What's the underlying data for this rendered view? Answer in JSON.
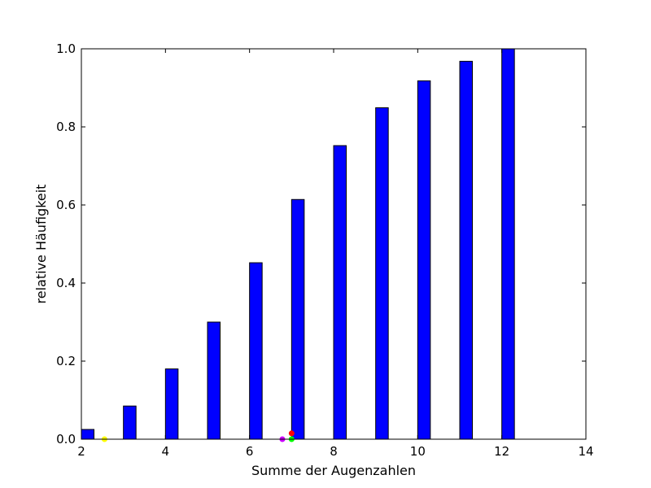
{
  "chart_data": {
    "type": "bar",
    "title": "",
    "xlabel": "Summe der Augenzahlen",
    "ylabel": "relative Häufigkeit",
    "xlim": [
      2,
      14
    ],
    "ylim": [
      0.0,
      1.0
    ],
    "x_ticks": [
      "2",
      "4",
      "6",
      "8",
      "10",
      "12",
      "14"
    ],
    "y_ticks": [
      "0.0",
      "0.2",
      "0.4",
      "0.6",
      "0.8",
      "1.0"
    ],
    "x_tick_values": [
      2,
      4,
      6,
      8,
      10,
      12,
      14
    ],
    "y_tick_values": [
      0.0,
      0.2,
      0.4,
      0.6,
      0.8,
      1.0
    ],
    "bar_width": 0.3,
    "bar_color": "#0000ff",
    "bar_edge_color": "#000000",
    "x": [
      2,
      3,
      4,
      5,
      6,
      7,
      8,
      9,
      10,
      11,
      12
    ],
    "values": [
      0.025,
      0.085,
      0.18,
      0.3,
      0.452,
      0.614,
      0.752,
      0.849,
      0.918,
      0.968,
      1.0
    ],
    "markers": [
      {
        "x": 2.55,
        "y": 0.0,
        "color": "#ffff00"
      },
      {
        "x": 6.78,
        "y": 0.0,
        "color": "#cc00ff"
      },
      {
        "x": 7.0,
        "y": 0.015,
        "color": "#ff0000"
      },
      {
        "x": 7.0,
        "y": 0.0,
        "color": "#00ff00"
      }
    ],
    "grid": false
  }
}
